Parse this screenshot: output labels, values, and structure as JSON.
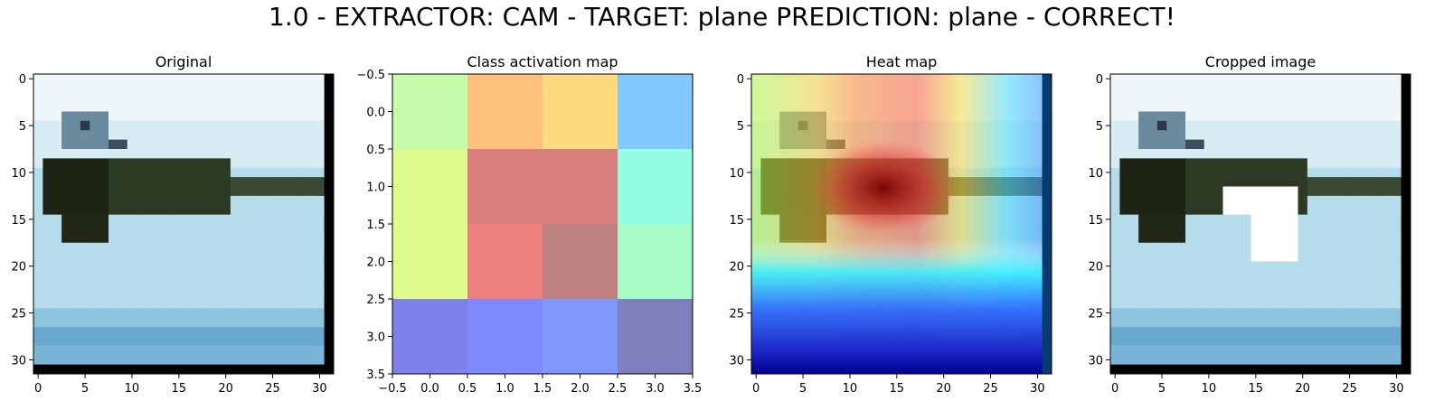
{
  "suptitle": "1.0 - EXTRACTOR: CAM  -  TARGET: plane  PREDICTION: plane - CORRECT!",
  "chart_data": [
    {
      "type": "heatmap",
      "title": "Original",
      "content": "32x32 image: light blue sky, dark aircraft silhouette",
      "xticks": [
        "0",
        "5",
        "10",
        "15",
        "20",
        "25",
        "30"
      ],
      "yticks": [
        "0",
        "5",
        "10",
        "15",
        "20",
        "25",
        "30"
      ],
      "xlim": [
        -0.5,
        31.5
      ],
      "ylim": [
        31.5,
        -0.5
      ]
    },
    {
      "type": "heatmap",
      "title": "Class activation map",
      "grid": [
        [
          "#c4fcac",
          "#ffc17e",
          "#ffda7e",
          "#80c8fe"
        ],
        [
          "#e0fc8c",
          "#d87e7c",
          "#d87e7c",
          "#94fee4"
        ],
        [
          "#e0fc8c",
          "#ef7f7f",
          "#be807e",
          "#a8fcc8"
        ],
        [
          "#7f80ec",
          "#7f8afe",
          "#7f98fe",
          "#7f7fbe"
        ]
      ],
      "xticks": [
        "−0.5",
        "0.0",
        "0.5",
        "1.0",
        "1.5",
        "2.0",
        "2.5",
        "3.0",
        "3.5"
      ],
      "yticks": [
        "−0.5",
        "0.0",
        "0.5",
        "1.0",
        "1.5",
        "2.0",
        "2.5",
        "3.0",
        "3.5"
      ],
      "xlim": [
        -0.5,
        3.5
      ],
      "ylim": [
        3.5,
        -0.5
      ]
    },
    {
      "type": "heatmap",
      "title": "Heat map",
      "content": "32x32 image with jet-colormap activation overlay, hottest over aircraft body",
      "xticks": [
        "0",
        "5",
        "10",
        "15",
        "20",
        "25",
        "30"
      ],
      "yticks": [
        "0",
        "5",
        "10",
        "15",
        "20",
        "25",
        "30"
      ],
      "xlim": [
        -0.5,
        31.5
      ],
      "ylim": [
        31.5,
        -0.5
      ]
    },
    {
      "type": "heatmap",
      "title": "Cropped image",
      "content": "32x32 original image with white masked region over hottest area",
      "xticks": [
        "0",
        "5",
        "10",
        "15",
        "20",
        "25",
        "30"
      ],
      "yticks": [
        "0",
        "5",
        "10",
        "15",
        "20",
        "25",
        "30"
      ],
      "xlim": [
        -0.5,
        31.5
      ],
      "ylim": [
        31.5,
        -0.5
      ]
    }
  ]
}
